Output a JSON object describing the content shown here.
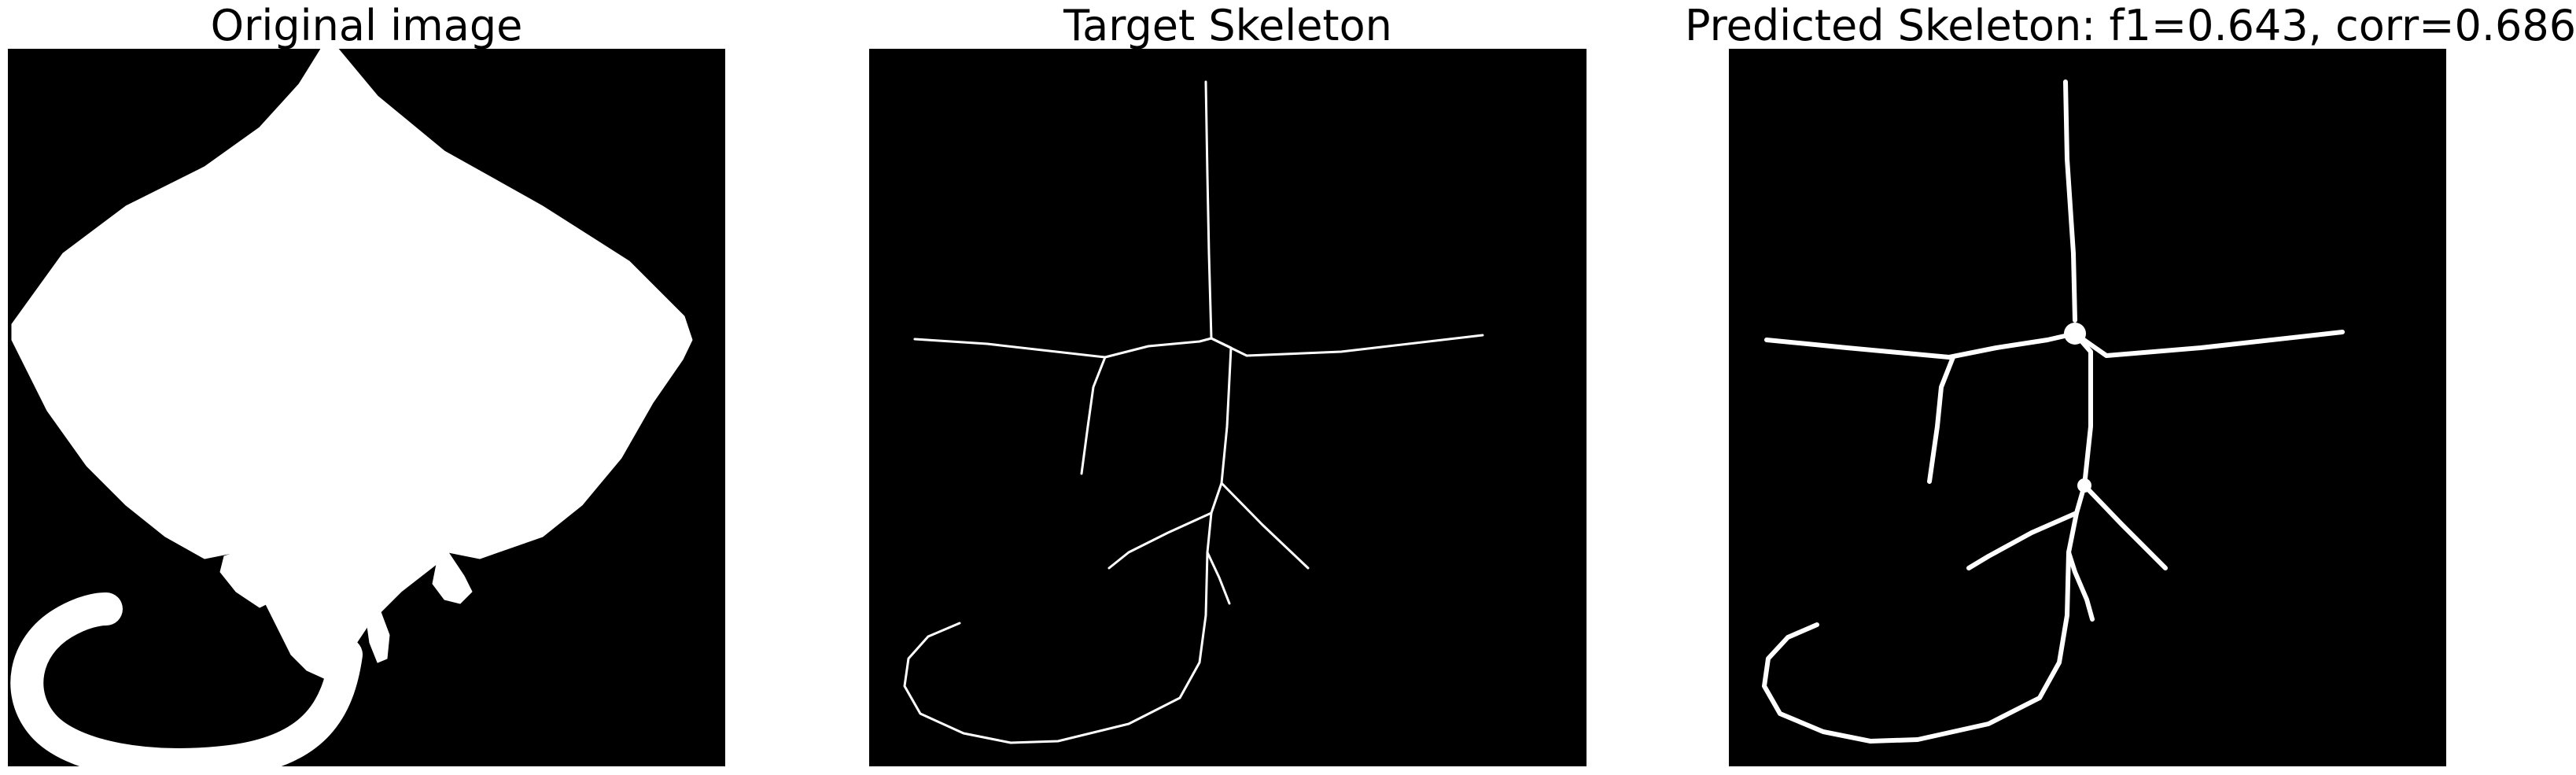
{
  "figure": {
    "panels": [
      {
        "title": "Original image"
      },
      {
        "title": "Target Skeleton"
      },
      {
        "title": "Predicted Skeleton: f1=0.643, corr=0.686"
      }
    ],
    "colors": {
      "background": "#000000",
      "foreground": "#ffffff",
      "page": "#ffffff"
    }
  }
}
